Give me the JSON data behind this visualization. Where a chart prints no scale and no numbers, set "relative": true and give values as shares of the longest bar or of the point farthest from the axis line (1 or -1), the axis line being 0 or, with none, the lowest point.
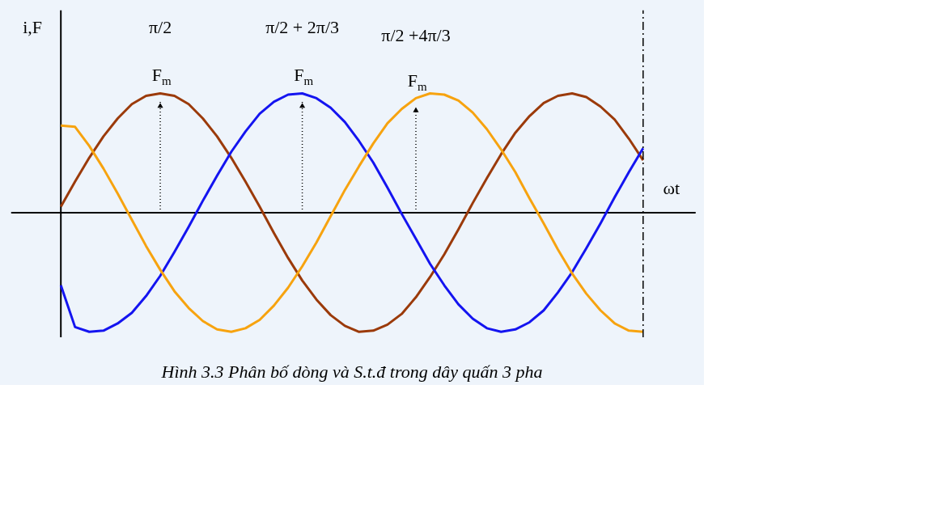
{
  "chart_data": {
    "type": "line",
    "title": "Hình 3.3   Phân bố dòng và S.t.đ trong dây quấn 3 pha",
    "ylabel": "i,F",
    "xlabel": "ωt",
    "relative": true,
    "line_style": "solid",
    "annotations": [
      "π/2",
      "π/2 + 2π/3",
      "π/2 +4π/3",
      "F$_{m}$",
      "F$_{m}$",
      "F$_{m}$"
    ],
    "categories": [
      null,
      null,
      null,
      null,
      null,
      null,
      null,
      null,
      null,
      null,
      null,
      null,
      null,
      null,
      null,
      null,
      null,
      null,
      null,
      null,
      null,
      null,
      null,
      null,
      null,
      null,
      null,
      null,
      null,
      null,
      null,
      null,
      null,
      null,
      null,
      null,
      null,
      null,
      null,
      null,
      null,
      null
    ],
    "series": [
      {
        "color": "#9b3a0a",
        "values": [
          0.05,
          0.26,
          0.46,
          0.64,
          0.79,
          0.91,
          0.98,
          1.0,
          0.98,
          0.91,
          0.79,
          0.64,
          0.46,
          0.26,
          0.05,
          -0.17,
          -0.38,
          -0.57,
          -0.73,
          -0.86,
          -0.95,
          -1.0,
          -0.99,
          -0.94,
          -0.85,
          -0.71,
          -0.54,
          -0.35,
          -0.14,
          0.08,
          0.29,
          0.49,
          0.67,
          0.81,
          0.92,
          0.98,
          1.0,
          0.97,
          0.89,
          0.78,
          0.62,
          0.44
        ]
      },
      {
        "color": "#1414f0",
        "values": [
          -0.61,
          -0.96,
          -1.0,
          -0.99,
          -0.93,
          -0.84,
          -0.7,
          -0.53,
          -0.33,
          -0.12,
          0.1,
          0.31,
          0.51,
          0.68,
          0.83,
          0.93,
          0.99,
          1.0,
          0.96,
          0.88,
          0.76,
          0.6,
          0.42,
          0.21,
          -0.01,
          -0.22,
          -0.43,
          -0.61,
          -0.77,
          -0.89,
          -0.97,
          -1.0,
          -0.98,
          -0.92,
          -0.82,
          -0.67,
          -0.5,
          -0.3,
          -0.09,
          0.13,
          0.34,
          0.54
        ]
      },
      {
        "color": "#f7a30f",
        "values": [
          0.73,
          0.72,
          0.56,
          0.37,
          0.16,
          -0.06,
          -0.28,
          -0.48,
          -0.66,
          -0.8,
          -0.91,
          -0.98,
          -1.0,
          -0.97,
          -0.9,
          -0.78,
          -0.63,
          -0.45,
          -0.25,
          -0.03,
          0.19,
          0.39,
          0.58,
          0.75,
          0.87,
          0.96,
          1.0,
          0.99,
          0.94,
          0.84,
          0.7,
          0.53,
          0.34,
          0.12,
          -0.09,
          -0.31,
          -0.51,
          -0.68,
          -0.82,
          -0.93,
          -0.99,
          -1.0
        ]
      }
    ]
  }
}
